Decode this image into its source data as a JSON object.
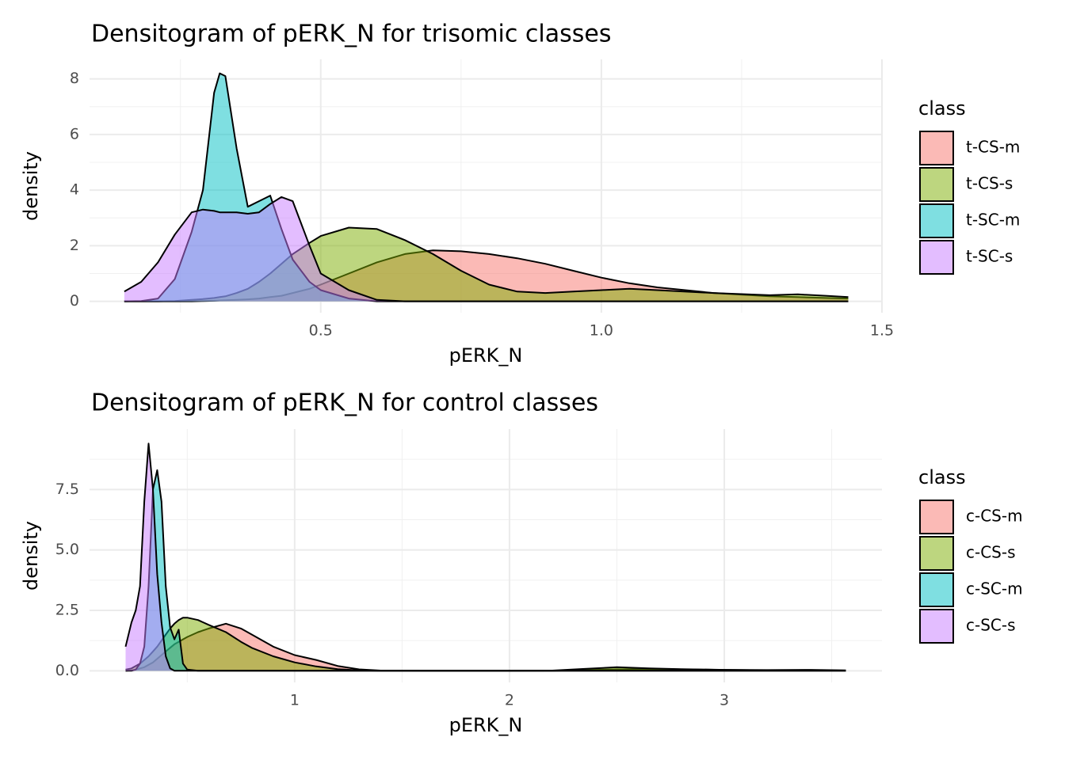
{
  "chart_data": [
    {
      "type": "density",
      "title": "Densitogram of pERK_N for trisomic classes",
      "x_label": "pERK_N",
      "y_label": "density",
      "legend_title": "class",
      "xlim": [
        0.088,
        1.5
      ],
      "ylim": [
        -0.41,
        8.7
      ],
      "xticks": [
        0.5,
        {
          "value": 1,
          "label": "1.0"
        },
        1.5
      ],
      "yticks": [
        0,
        2,
        4,
        6,
        8
      ],
      "x_minor_ticks": [
        0.25,
        0.75,
        1.25
      ],
      "y_minor_ticks": [
        1,
        3,
        5,
        7
      ],
      "grid": true,
      "alpha": 0.5,
      "legend": "right",
      "x": [
        0.15,
        0.18,
        0.21,
        0.24,
        0.27,
        0.29,
        0.31,
        0.32,
        0.33,
        0.35,
        0.37,
        0.39,
        0.41,
        0.43,
        0.45,
        0.48,
        0.5,
        0.55,
        0.6,
        0.65,
        0.7,
        0.75,
        0.8,
        0.85,
        0.9,
        0.95,
        1.0,
        1.05,
        1.1,
        1.2,
        1.3,
        1.35,
        1.4,
        1.44
      ],
      "series": [
        {
          "name": "t-CS-m",
          "color": "#F8766D",
          "values": [
            0,
            0,
            0,
            0,
            0,
            0.01,
            0.02,
            0.03,
            0.04,
            0.05,
            0.07,
            0.1,
            0.15,
            0.2,
            0.3,
            0.45,
            0.6,
            1.0,
            1.4,
            1.7,
            1.83,
            1.8,
            1.7,
            1.55,
            1.35,
            1.1,
            0.85,
            0.65,
            0.5,
            0.3,
            0.18,
            0.15,
            0.12,
            0.1
          ]
        },
        {
          "name": "t-CS-s",
          "color": "#7CAE00",
          "values": [
            0,
            0,
            0,
            0.01,
            0.05,
            0.08,
            0.12,
            0.15,
            0.18,
            0.3,
            0.45,
            0.7,
            1.0,
            1.35,
            1.7,
            2.1,
            2.35,
            2.65,
            2.6,
            2.2,
            1.7,
            1.1,
            0.6,
            0.35,
            0.3,
            0.35,
            0.4,
            0.45,
            0.4,
            0.3,
            0.22,
            0.25,
            0.2,
            0.15
          ]
        },
        {
          "name": "t-SC-m",
          "color": "#00BFC4",
          "values": [
            0,
            0.01,
            0.1,
            0.8,
            2.5,
            4,
            7.5,
            8.2,
            8.1,
            5.5,
            3.4,
            3.6,
            3.8,
            2.6,
            1.5,
            0.7,
            0.4,
            0.1,
            0,
            0,
            0,
            0,
            0,
            0,
            0,
            0,
            0,
            0,
            0,
            0,
            0,
            0,
            0,
            0
          ]
        },
        {
          "name": "t-SC-s",
          "color": "#C77CFF",
          "values": [
            0.35,
            0.7,
            1.4,
            2.4,
            3.2,
            3.3,
            3.25,
            3.2,
            3.2,
            3.2,
            3.15,
            3.2,
            3.5,
            3.75,
            3.6,
            2.0,
            1.0,
            0.4,
            0.05,
            0,
            0,
            0,
            0,
            0,
            0,
            0,
            0,
            0,
            0,
            0,
            0,
            0,
            0,
            0
          ]
        }
      ]
    },
    {
      "type": "density",
      "title": "Densitogram of pERK_N for control classes",
      "x_label": "pERK_N",
      "y_label": "density",
      "legend_title": "class",
      "xlim": [
        0.045,
        3.734
      ],
      "ylim": [
        -0.48,
        10.0
      ],
      "xticks": [
        1,
        2,
        3
      ],
      "yticks": [
        {
          "value": 0,
          "label": "0.0"
        },
        2.5,
        {
          "value": 5,
          "label": "5.0"
        },
        7.5
      ],
      "x_minor_ticks": [
        0.5,
        1.5,
        2.5,
        3.5
      ],
      "y_minor_ticks": [
        1.25,
        3.75,
        6.25,
        8.75
      ],
      "grid": true,
      "alpha": 0.5,
      "legend": "right",
      "x": [
        0.213,
        0.24,
        0.26,
        0.28,
        0.3,
        0.32,
        0.34,
        0.36,
        0.38,
        0.4,
        0.42,
        0.44,
        0.46,
        0.48,
        0.5,
        0.55,
        0.6,
        0.68,
        0.75,
        0.8,
        0.9,
        1.0,
        1.1,
        1.2,
        1.3,
        1.4,
        1.6,
        2.0,
        2.2,
        2.35,
        2.5,
        2.65,
        2.8,
        3.0,
        3.2,
        3.4,
        3.566
      ],
      "series": [
        {
          "name": "c-CS-m",
          "color": "#F8766D",
          "values": [
            0,
            0.02,
            0.05,
            0.1,
            0.15,
            0.25,
            0.35,
            0.5,
            0.65,
            0.8,
            0.95,
            1.1,
            1.2,
            1.3,
            1.4,
            1.6,
            1.75,
            1.95,
            1.75,
            1.5,
            1.0,
            0.65,
            0.45,
            0.2,
            0.06,
            0.01,
            0,
            0,
            0,
            0.03,
            0.06,
            0.07,
            0.06,
            0.04,
            0.02,
            0.02,
            0.01
          ]
        },
        {
          "name": "c-CS-s",
          "color": "#7CAE00",
          "values": [
            0.05,
            0.1,
            0.2,
            0.3,
            0.45,
            0.6,
            0.8,
            1.0,
            1.25,
            1.5,
            1.75,
            1.95,
            2.1,
            2.2,
            2.2,
            2.1,
            1.9,
            1.6,
            1.2,
            0.95,
            0.6,
            0.35,
            0.18,
            0.07,
            0.02,
            0,
            0,
            0,
            0.01,
            0.08,
            0.15,
            0.1,
            0.07,
            0.04,
            0.03,
            0.04,
            0.02
          ]
        },
        {
          "name": "c-SC-m",
          "color": "#00BFC4",
          "values": [
            0,
            0,
            0.05,
            0.3,
            1.0,
            3.5,
            7.5,
            8.3,
            7.0,
            3.5,
            1.8,
            1.3,
            1.7,
            0.3,
            0.05,
            0,
            0,
            0,
            0,
            0,
            0,
            0,
            0,
            0,
            0,
            0,
            0,
            0,
            0,
            0,
            0,
            0,
            0,
            0,
            0,
            0,
            0
          ]
        },
        {
          "name": "c-SC-s",
          "color": "#C77CFF",
          "values": [
            1.0,
            2.0,
            2.5,
            3.5,
            7.0,
            9.4,
            7.5,
            4.0,
            2.0,
            0.6,
            0.1,
            0,
            0,
            0,
            0,
            0,
            0,
            0,
            0,
            0,
            0,
            0,
            0,
            0,
            0,
            0,
            0,
            0,
            0,
            0,
            0,
            0,
            0,
            0,
            0,
            0,
            0
          ]
        }
      ]
    }
  ]
}
